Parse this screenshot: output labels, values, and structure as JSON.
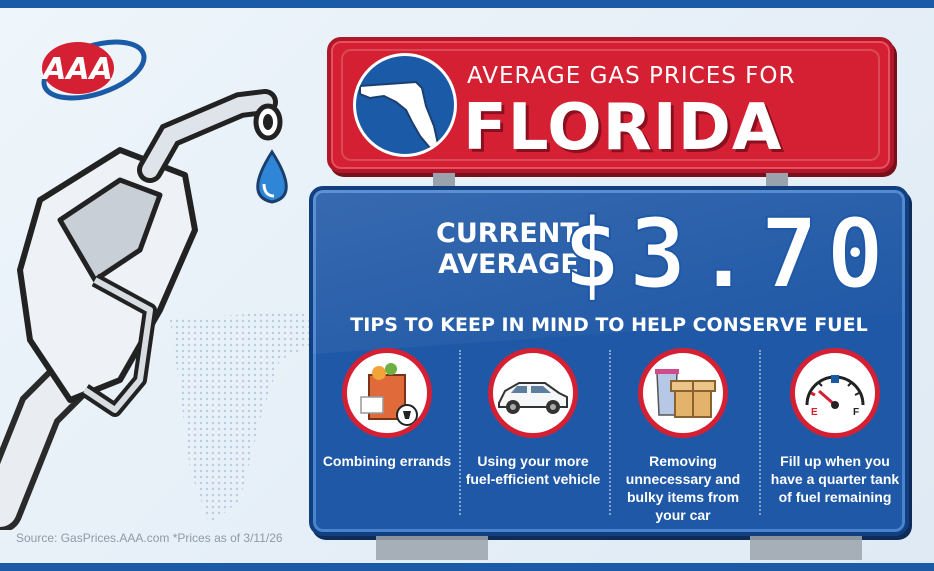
{
  "logo": {
    "text": "AAA"
  },
  "sign": {
    "subtitle": "AVERAGE GAS PRICES FOR",
    "state": "FLORIDA"
  },
  "price": {
    "label_line1": "CURRENT",
    "label_line2": "AVERAGE",
    "value": "$3.70"
  },
  "tips": {
    "title": "TIPS TO KEEP IN MIND TO HELP CONSERVE FUEL",
    "items": [
      {
        "icon": "grocery-bag-icon",
        "text": "Combining errands"
      },
      {
        "icon": "car-icon",
        "text": "Using your more fuel-efficient vehicle"
      },
      {
        "icon": "boxes-icon",
        "text": "Removing unnecessary and bulky items from your car"
      },
      {
        "icon": "fuel-gauge-icon",
        "text": "Fill up when you have a quarter tank of fuel remaining"
      }
    ]
  },
  "gauge": {
    "empty": "E",
    "full": "F"
  },
  "source": "Source: GasPrices.AAA.com *Prices as of 3/11/26",
  "colors": {
    "red": "#d42032",
    "blue": "#1f58a6",
    "dark_blue": "#1a5aa6"
  }
}
